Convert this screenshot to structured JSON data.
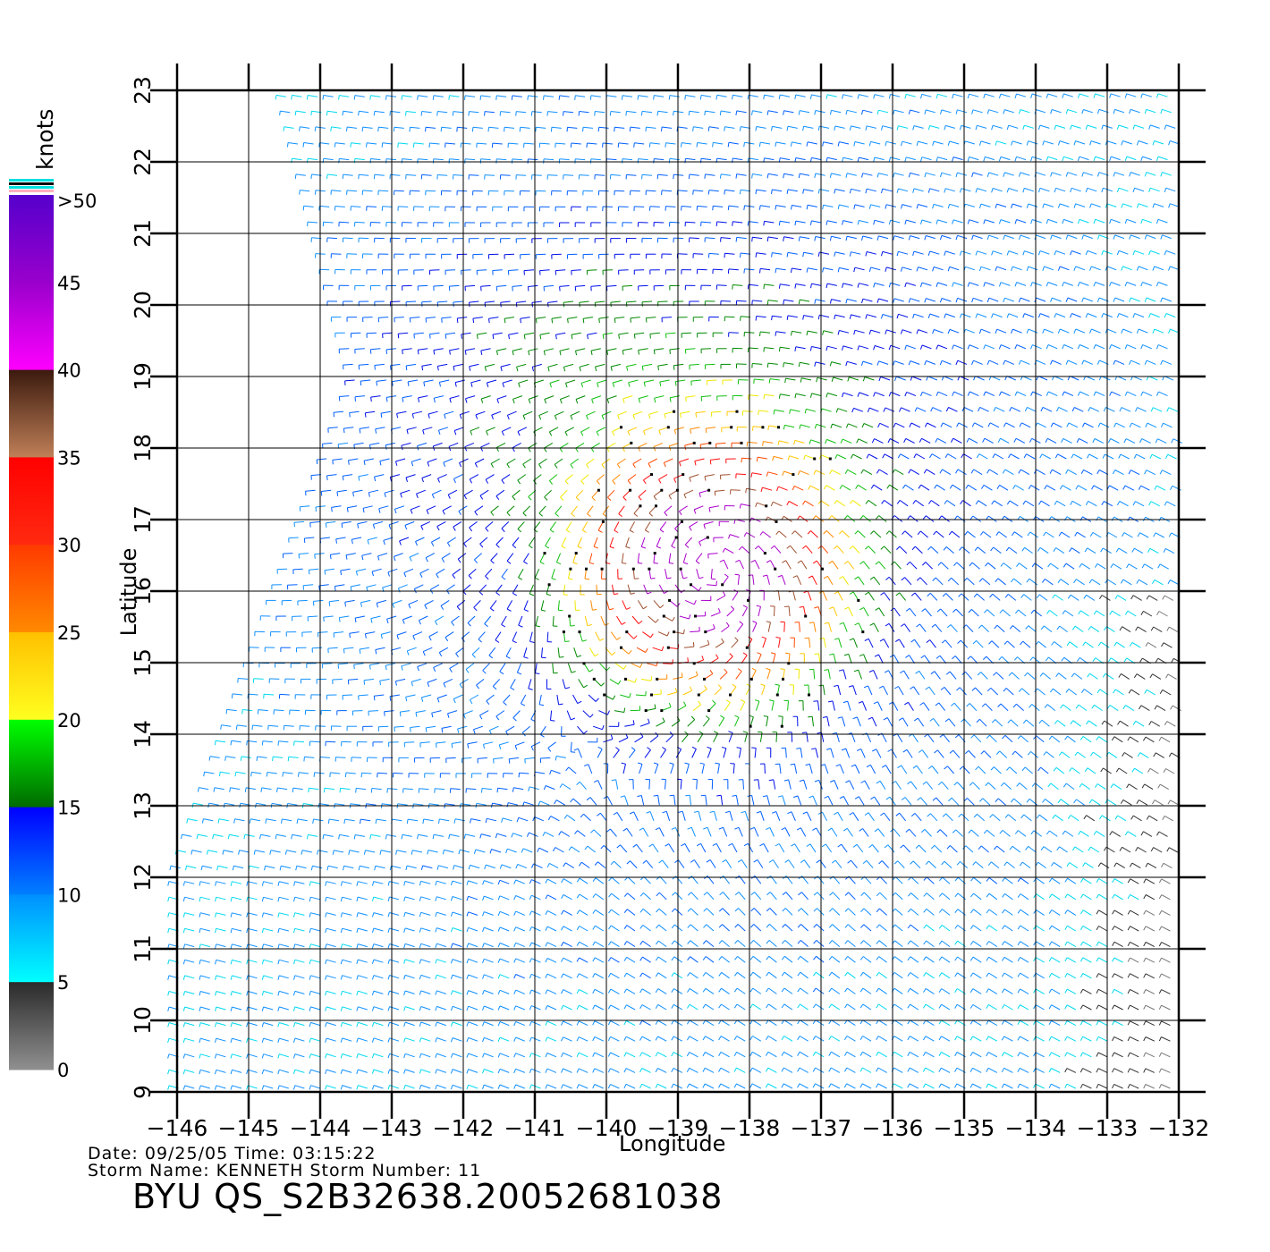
{
  "map": {
    "x_axis_label": "Longitude",
    "y_axis_label": "Latitude",
    "longitude_ticks": [
      "-146",
      "-145",
      "-144",
      "-143",
      "-142",
      "-141",
      "-140",
      "-139",
      "-138",
      "-137",
      "-136",
      "-135",
      "-134",
      "-133",
      "-132"
    ],
    "latitude_ticks": [
      "9",
      "10",
      "11",
      "12",
      "13",
      "14",
      "15",
      "16",
      "17",
      "18",
      "19",
      "20",
      "21",
      "22",
      "23"
    ],
    "lon_range": [
      -146,
      -132
    ],
    "lat_range": [
      9,
      23
    ],
    "storm_center": {
      "lon": -138.5,
      "lat": 16.3
    },
    "grid": true
  },
  "legend": {
    "unit": "knots",
    "labels": [
      ">50",
      "45",
      "40",
      "35",
      "30",
      "25",
      "20",
      "15",
      "10",
      "5",
      "0"
    ],
    "bands": [
      {
        "from": 50,
        "to": 40,
        "colors": [
          "#5500cc",
          "#9a00cc",
          "#ff00ff"
        ]
      },
      {
        "from": 40,
        "to": 35,
        "colors": [
          "#3b1a0e",
          "#c08058"
        ]
      },
      {
        "from": 35,
        "to": 30,
        "colors": [
          "#ff0000",
          "#ff2a10"
        ]
      },
      {
        "from": 30,
        "to": 25,
        "colors": [
          "#ff3a00",
          "#ff8a00"
        ]
      },
      {
        "from": 25,
        "to": 20,
        "colors": [
          "#ffc000",
          "#ffff20"
        ]
      },
      {
        "from": 20,
        "to": 15,
        "colors": [
          "#00ff00",
          "#006a00"
        ]
      },
      {
        "from": 15,
        "to": 10,
        "colors": [
          "#0000ff",
          "#0080ff"
        ]
      },
      {
        "from": 10,
        "to": 5,
        "colors": [
          "#0090ff",
          "#00ffff"
        ]
      },
      {
        "from": 5,
        "to": 0,
        "colors": [
          "#2a2a2a",
          "#909090"
        ]
      }
    ],
    "top_stripes": [
      "#00e0e0",
      "#000000",
      "#00e0e0",
      "#ffb0c0"
    ]
  },
  "info": {
    "date_line": "Date: 09/25/05   Time: 03:15:22",
    "storm_line": "Storm  Name: KENNETH   Storm  Number: 11",
    "file_id": "BYU  QS_S2B32638.20052681038"
  }
}
